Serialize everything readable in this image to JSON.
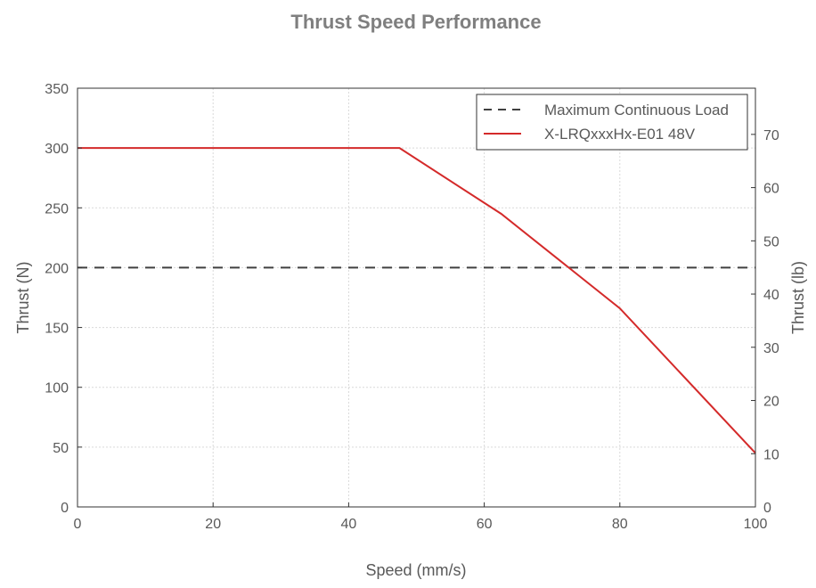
{
  "chart_data": {
    "type": "line",
    "title": "Thrust Speed Performance",
    "xlabel": "Speed (mm/s)",
    "ylabel": "Thrust (N)",
    "ylabel_right": "Thrust (lb)",
    "xlim": [
      0,
      100
    ],
    "ylim": [
      0,
      350
    ],
    "ylim_right_lb": [
      0,
      78.68
    ],
    "x_ticks": [
      0,
      20,
      40,
      60,
      80,
      100
    ],
    "y_ticks": [
      0,
      50,
      100,
      150,
      200,
      250,
      300,
      350
    ],
    "y_ticks_right": [
      0,
      10,
      20,
      30,
      40,
      50,
      60,
      70
    ],
    "grid": true,
    "legend_position": "top-right",
    "series": [
      {
        "name": "Maximum Continuous Load",
        "style": "dashed",
        "color": "#404040",
        "x": [
          0,
          100
        ],
        "y": [
          200,
          200
        ]
      },
      {
        "name": "X-LRQxxxHx-E01 48V",
        "style": "solid",
        "color": "#d42a2a",
        "x": [
          0,
          47.5,
          62.5,
          80,
          100
        ],
        "y": [
          300,
          300,
          245,
          166,
          45
        ]
      }
    ]
  }
}
